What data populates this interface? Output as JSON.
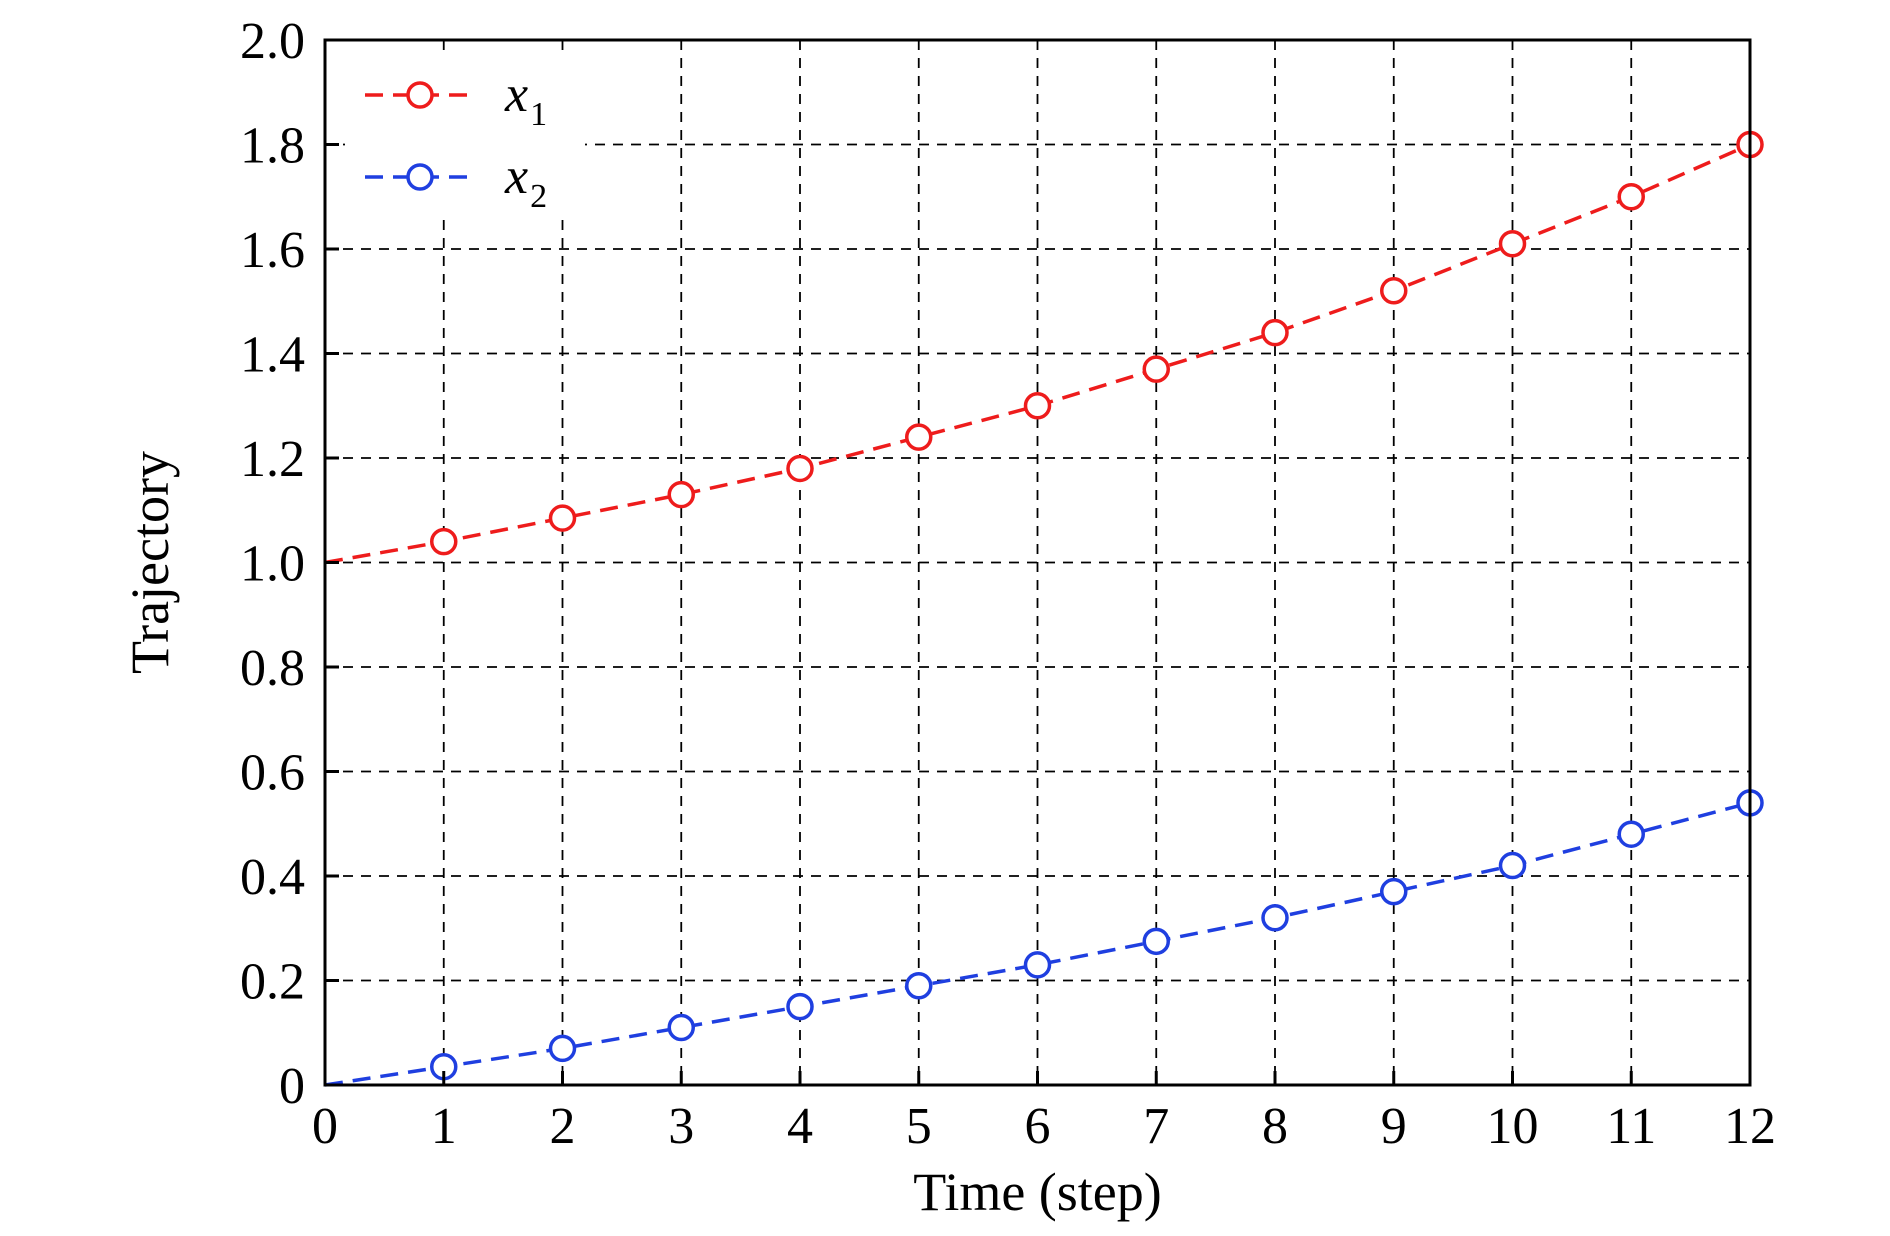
{
  "chart_data": {
    "type": "line",
    "xlabel": "Time (step)",
    "ylabel": "Trajectory",
    "xlim": [
      0,
      12
    ],
    "ylim": [
      0,
      2.0
    ],
    "x_ticks": [
      "0",
      "1",
      "2",
      "3",
      "4",
      "5",
      "6",
      "7",
      "8",
      "9",
      "10",
      "11",
      "12"
    ],
    "y_ticks": [
      "0",
      "0.2",
      "0.4",
      "0.6",
      "0.8",
      "1.0",
      "1.2",
      "1.4",
      "1.6",
      "1.8",
      "2.0"
    ],
    "grid": true,
    "legend_position": "top-left",
    "x": [
      0,
      1,
      2,
      3,
      4,
      5,
      6,
      7,
      8,
      9,
      10,
      11,
      12
    ],
    "series": [
      {
        "name": "x",
        "name_subscript": "1",
        "color": "#ee1c1c",
        "marker": "open-circle",
        "line_style": "dashed",
        "values": [
          1.0,
          1.04,
          1.085,
          1.13,
          1.18,
          1.24,
          1.3,
          1.37,
          1.44,
          1.52,
          1.61,
          1.7,
          1.8
        ]
      },
      {
        "name": "x",
        "name_subscript": "2",
        "color": "#1f3fe0",
        "marker": "open-circle",
        "line_style": "dashed",
        "values": [
          0.0,
          0.035,
          0.07,
          0.11,
          0.15,
          0.19,
          0.23,
          0.275,
          0.32,
          0.37,
          0.42,
          0.48,
          0.54
        ]
      }
    ]
  }
}
